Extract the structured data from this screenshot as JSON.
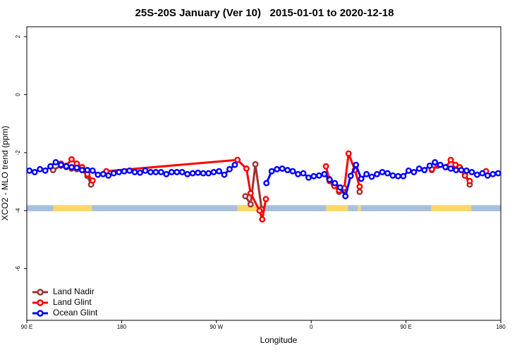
{
  "chart_data": {
    "type": "line",
    "title": "25S-20S January (Ver 10)   2015-01-01 to 2020-12-18",
    "x_label": "Longitude",
    "y_label": "XCO2 - MLO trend (ppm)",
    "xlim": [
      90,
      540
    ],
    "xticks": [
      {
        "value": 90,
        "label": "90 E"
      },
      180,
      {
        "value": 270,
        "label": "90 W"
      },
      {
        "value": 360,
        "label": "0"
      },
      {
        "value": 450,
        "label": "90 E"
      },
      {
        "value": 540,
        "label": "180"
      }
    ],
    "ylim": [
      -7.78,
      2.34
    ],
    "yticks": [
      2,
      0,
      -2,
      -4,
      -6
    ],
    "legend": "bottom-left",
    "strip_ylim": [
      -4.02,
      -3.81
    ],
    "strip_color": "#a9bfdf",
    "land_color": "#fbd66e",
    "land_ranges": [
      [
        115,
        152
      ],
      [
        290,
        314
      ],
      [
        374,
        395
      ],
      [
        404,
        407
      ],
      [
        474,
        512
      ]
    ],
    "series": [
      {
        "name": "Land Nadir",
        "color": "#993333",
        "x": [
          115,
          122.5,
          127.5,
          132.5,
          137.5,
          142.5,
          147.5,
          151,
          160,
          297.5,
          302.5,
          307,
          313,
          320,
          377,
          381.5,
          386.5,
          391,
          398,
          406,
          440,
          474.5,
          480,
          488,
          497,
          506,
          510.5
        ],
        "values": [
          -2.6,
          -2.45,
          -2.5,
          -2.55,
          -2.57,
          -2.6,
          -2.8,
          -3.1,
          null,
          -3.5,
          -3.78,
          -2.4,
          -3.95,
          null,
          -2.9,
          -3.1,
          -3.35,
          -3.3,
          null,
          -3.35,
          null,
          -2.6,
          -2.45,
          -2.5,
          -2.5,
          -2.75,
          -3.1
        ]
      },
      {
        "name": "Land Glint",
        "color": "#ff0000",
        "x": [
          122.5,
          127.5,
          132.5,
          137.5,
          142.5,
          147.5,
          152.5,
          157.5,
          165.5,
          290,
          298.5,
          302.5,
          311,
          313.5,
          317,
          340,
          374,
          377.5,
          382,
          386.5,
          391.5,
          395.5,
          401.5,
          406,
          440,
          474.5,
          482.5,
          488,
          492.5,
          497,
          501,
          506,
          510.5,
          518,
          526
        ],
        "values": [
          -2.38,
          -2.45,
          -2.23,
          -2.38,
          -2.5,
          -2.74,
          -2.96,
          null,
          -2.64,
          -2.25,
          -2.55,
          -3.4,
          -4.0,
          -4.3,
          -3.6,
          null,
          -2.47,
          -2.98,
          -3.15,
          -3.3,
          -3.22,
          -2.03,
          -2.6,
          -3.17,
          null,
          -2.57,
          -2.42,
          -2.5,
          -2.25,
          -2.42,
          -2.5,
          -2.79,
          -2.98,
          null,
          -2.64
        ]
      },
      {
        "name": "Ocean Glint",
        "color": "#0000ff",
        "x": [
          92.5,
          97.5,
          102.5,
          107.5,
          112.5,
          117.5,
          122.5,
          127.5,
          132.5,
          137.5,
          142.5,
          147.5,
          152.5,
          157.5,
          162.5,
          167.5,
          172.5,
          177.5,
          182.5,
          187.5,
          192.5,
          197.5,
          202.5,
          207.5,
          212.5,
          217.5,
          222.5,
          227.5,
          232.5,
          237.5,
          242.5,
          247.5,
          252.5,
          257.5,
          262.5,
          267.5,
          272.5,
          277.5,
          282.5,
          287.5,
          300,
          317.5,
          322.5,
          327.5,
          332.5,
          337.5,
          342.5,
          347.5,
          352.5,
          357.5,
          362.5,
          367.5,
          372.5,
          377.5,
          382.5,
          387.5,
          392.5,
          397.5,
          402.5,
          407.5,
          412.5,
          417.5,
          422.5,
          427.5,
          432.5,
          437.5,
          442.5,
          447.5,
          452.5,
          457.5,
          462.5,
          467.5,
          472.5,
          477.5,
          482.5,
          487.5,
          492.5,
          497.5,
          502.5,
          507.5,
          512.5,
          517.5,
          522.5,
          527.5,
          532.5,
          537.5
        ],
        "values": [
          -2.62,
          -2.67,
          -2.57,
          -2.62,
          -2.47,
          -2.33,
          -2.42,
          -2.47,
          -2.5,
          -2.52,
          -2.6,
          -2.6,
          -2.62,
          -2.76,
          -2.74,
          -2.79,
          -2.71,
          -2.67,
          -2.64,
          -2.62,
          -2.67,
          -2.69,
          -2.62,
          -2.67,
          -2.67,
          -2.67,
          -2.74,
          -2.67,
          -2.67,
          -2.67,
          -2.74,
          -2.71,
          -2.69,
          -2.71,
          -2.71,
          -2.67,
          -2.64,
          -2.76,
          -2.57,
          -2.42,
          null,
          -3.05,
          -2.64,
          -2.57,
          -2.55,
          -2.6,
          -2.64,
          -2.74,
          -2.71,
          -2.86,
          -2.81,
          -2.79,
          -2.74,
          -2.93,
          -3.05,
          -3.2,
          -3.5,
          -2.8,
          -2.42,
          -2.9,
          -2.74,
          -2.83,
          -2.74,
          -2.67,
          -2.71,
          -2.79,
          -2.81,
          -2.81,
          -2.62,
          -2.67,
          -2.55,
          -2.6,
          -2.45,
          -2.33,
          -2.42,
          -2.5,
          -2.55,
          -2.6,
          -2.6,
          -2.62,
          -2.67,
          -2.76,
          -2.71,
          -2.79,
          -2.74,
          -2.71
        ]
      }
    ]
  }
}
